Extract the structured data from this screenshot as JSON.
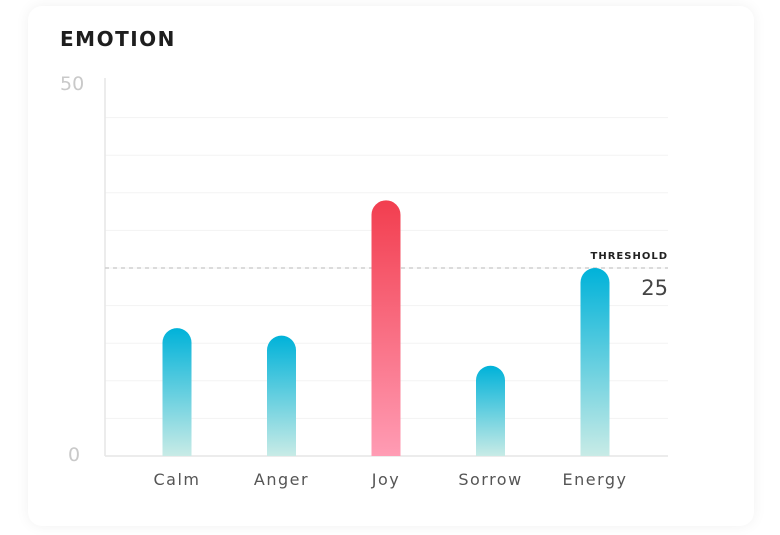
{
  "chart_data": {
    "type": "bar",
    "title": "EMOTION",
    "categories": [
      "Calm",
      "Anger",
      "Joy",
      "Sorrow",
      "Energy"
    ],
    "values": [
      17,
      16,
      34,
      12,
      25
    ],
    "ylim": [
      0,
      50
    ],
    "y_ticks": [
      "50",
      "0"
    ],
    "grid": true,
    "threshold": {
      "label": "THRESHOLD",
      "value": 25,
      "value_text": "25"
    },
    "colors": {
      "bar_top": "#00b2d9",
      "bar_bottom": "#c8ebe6",
      "highlight_top": "#f23e4f",
      "highlight_bottom": "#ff9cb4",
      "highlight_category": "Joy"
    }
  }
}
